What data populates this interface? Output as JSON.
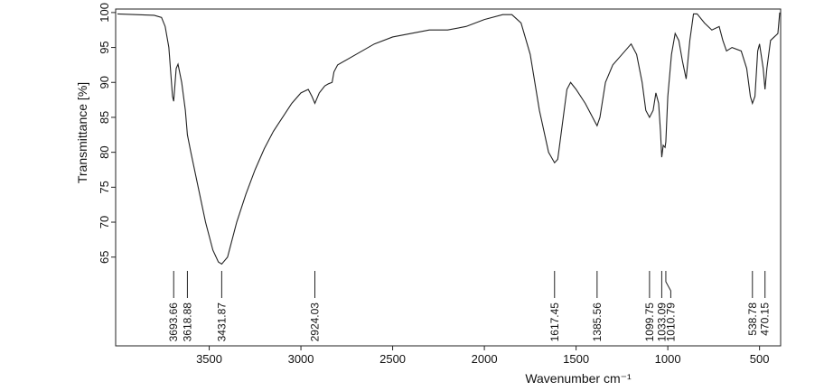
{
  "chart_data": {
    "type": "line",
    "xlabel": "Wavenumber cm⁻¹",
    "ylabel": "Transmittance [%]",
    "color": "#222222",
    "xlim": [
      4010,
      385
    ],
    "ylim": [
      52.3,
      100.5
    ],
    "xticks": [
      3500,
      3000,
      2500,
      2000,
      1500,
      1000,
      500
    ],
    "yticks": [
      65,
      70,
      75,
      80,
      85,
      90,
      95,
      100
    ],
    "x": [
      4000,
      3900,
      3800,
      3760,
      3740,
      3720,
      3700,
      3693.66,
      3680,
      3670,
      3650,
      3630,
      3618.88,
      3600,
      3560,
      3520,
      3480,
      3450,
      3431.87,
      3400,
      3350,
      3300,
      3250,
      3200,
      3150,
      3100,
      3050,
      3000,
      2960,
      2940,
      2924.03,
      2900,
      2870,
      2850,
      2830,
      2820,
      2800,
      2700,
      2600,
      2500,
      2400,
      2300,
      2200,
      2100,
      2000,
      1900,
      1850,
      1800,
      1750,
      1700,
      1650,
      1617.45,
      1600,
      1580,
      1550,
      1530,
      1500,
      1450,
      1400,
      1385.56,
      1370,
      1340,
      1300,
      1250,
      1200,
      1170,
      1140,
      1120,
      1099.75,
      1080,
      1065,
      1050,
      1040,
      1033.09,
      1025,
      1015,
      1010.79,
      1000,
      980,
      960,
      940,
      920,
      900,
      880,
      860,
      840,
      800,
      760,
      720,
      700,
      680,
      650,
      600,
      570,
      550,
      538.78,
      525,
      510,
      500,
      480,
      470.15,
      460,
      440,
      420,
      400,
      390
    ],
    "values": [
      99.8,
      99.7,
      99.6,
      99.3,
      98,
      95,
      88,
      87.3,
      92,
      92.6,
      90,
      86,
      82.5,
      80,
      75,
      70,
      66,
      64.3,
      64,
      65,
      70,
      74,
      77.5,
      80.5,
      83,
      85,
      87,
      88.5,
      89,
      88,
      87,
      88.5,
      89.5,
      89.8,
      90,
      91.5,
      92.5,
      94,
      95.5,
      96.5,
      97,
      97.5,
      97.5,
      98,
      99,
      99.7,
      99.7,
      98.5,
      94,
      86,
      80,
      78.5,
      79,
      83,
      89,
      90,
      89,
      87,
      84.5,
      83.8,
      85,
      90,
      92.5,
      94,
      95.5,
      94,
      90,
      86,
      85,
      86,
      88.5,
      87,
      83,
      79.3,
      81,
      80.7,
      81.5,
      88,
      94,
      97,
      96,
      93,
      90.5,
      96,
      99.8,
      99.8,
      98.5,
      97.5,
      98,
      96,
      94.5,
      95,
      94.5,
      92,
      88,
      87,
      88,
      94.5,
      95.5,
      92,
      89,
      92,
      96,
      96.5,
      97,
      100
    ],
    "annotations": [
      3693.66,
      3618.88,
      3431.87,
      2924.03,
      1617.45,
      1385.56,
      1099.75,
      1033.09,
      1010.79,
      538.78,
      470.15
    ]
  }
}
